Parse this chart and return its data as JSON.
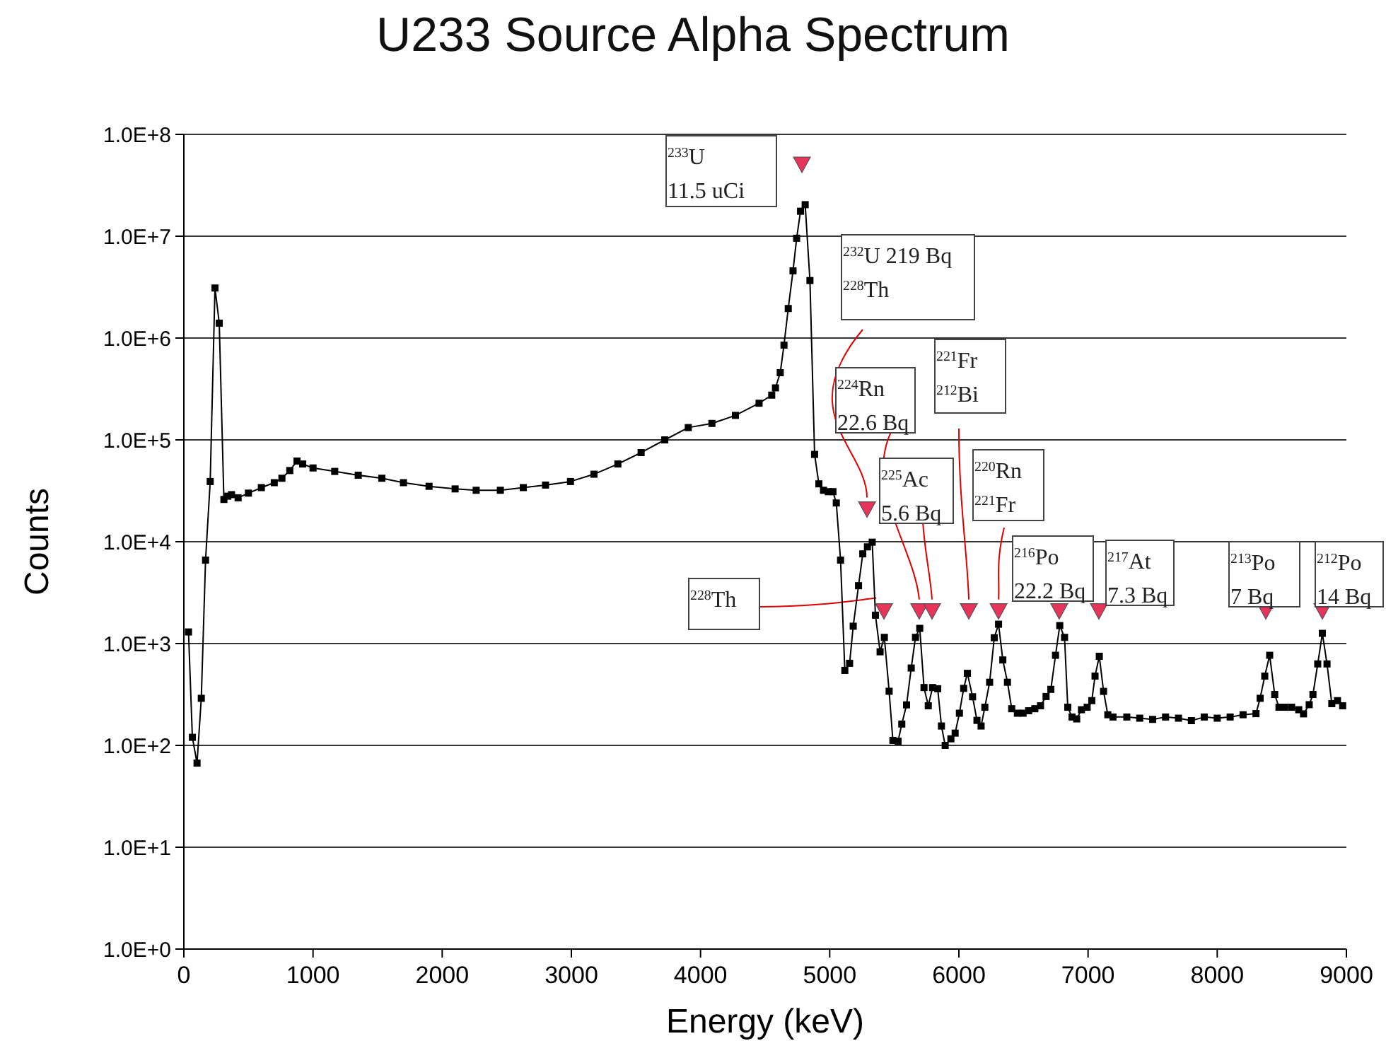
{
  "chart_data": {
    "type": "line",
    "title": "U233 Source Alpha Spectrum",
    "xlabel": "Energy (keV)",
    "ylabel": "Counts",
    "log": "y",
    "grid": "y",
    "xlim": [
      0,
      9000
    ],
    "xticks": [
      0,
      1000,
      2000,
      3000,
      4000,
      5000,
      6000,
      7000,
      8000,
      9000
    ],
    "ylim": [
      1,
      100000000
    ],
    "yticks": [
      {
        "value": 1,
        "label": "1.0E+0"
      },
      {
        "value": 10,
        "label": "1.0E+1"
      },
      {
        "value": 100,
        "label": "1.0E+2"
      },
      {
        "value": 1000,
        "label": "1.0E+3"
      },
      {
        "value": 10000,
        "label": "1.0E+4"
      },
      {
        "value": 100000,
        "label": "1.0E+5"
      },
      {
        "value": 1000000,
        "label": "1.0E+6"
      },
      {
        "value": 10000000,
        "label": "1.0E+7"
      },
      {
        "value": 100000000,
        "label": "1.0E+8"
      }
    ],
    "series": [
      {
        "type": "line",
        "color": "#000000",
        "marker": "square",
        "line_style": "solid",
        "x": [
          36,
          66,
          102,
          135,
          168,
          204,
          241,
          274,
          310,
          340,
          369,
          420,
          500,
          600,
          700,
          759,
          820,
          876,
          920,
          1000,
          1168,
          1350,
          1533,
          1700,
          1898,
          2100,
          2263,
          2450,
          2628,
          2800,
          2993,
          3175,
          3360,
          3540,
          3723,
          3905,
          4088,
          4270,
          4453,
          4551,
          4580,
          4617,
          4646,
          4679,
          4716,
          4744,
          4774,
          4810,
          4847,
          4883,
          4916,
          4952,
          4989,
          5025,
          5051,
          5084,
          5117,
          5154,
          5182,
          5223,
          5256,
          5292,
          5329,
          5354,
          5390,
          5423,
          5460,
          5489,
          5529,
          5558,
          5595,
          5631,
          5664,
          5697,
          5730,
          5763,
          5796,
          5836,
          5865,
          5894,
          5938,
          5971,
          6004,
          6037,
          6066,
          6106,
          6140,
          6172,
          6201,
          6238,
          6274,
          6307,
          6340,
          6376,
          6409,
          6453,
          6497,
          6540,
          6588,
          6632,
          6675,
          6712,
          6748,
          6781,
          6818,
          6843,
          6876,
          6912,
          6949,
          6993,
          7029,
          7054,
          7087,
          7120,
          7153,
          7193,
          7300,
          7400,
          7500,
          7600,
          7700,
          7800,
          7900,
          8000,
          8100,
          8200,
          8300,
          8332,
          8368,
          8406,
          8445,
          8478,
          8522,
          8576,
          8631,
          8668,
          8712,
          8741,
          8778,
          8814,
          8850,
          8887,
          8931,
          8971
        ],
        "values": [
          1300,
          120,
          67,
          290,
          6600,
          39000,
          3100000,
          1400000,
          26000,
          28000,
          29000,
          27000,
          30000,
          34000,
          38000,
          42000,
          50000,
          62000,
          58000,
          53000,
          49000,
          45000,
          42000,
          38000,
          35000,
          33000,
          32000,
          32000,
          34000,
          36000,
          39000,
          46000,
          58000,
          75000,
          100000,
          132000,
          145000,
          174000,
          229000,
          275000,
          324000,
          457000,
          851000,
          1950000,
          4570000,
          9550000,
          17600000,
          20400000,
          3670000,
          72000,
          37000,
          32000,
          31000,
          31000,
          24000,
          6600,
          545,
          640,
          1480,
          3700,
          7600,
          8900,
          9900,
          1900,
          830,
          1150,
          340,
          112,
          110,
          162,
          250,
          575,
          1150,
          1410,
          370,
          245,
          370,
          360,
          155,
          100,
          116,
          132,
          207,
          363,
          510,
          300,
          176,
          155,
          237,
          417,
          1140,
          1550,
          690,
          417,
          229,
          207,
          207,
          219,
          229,
          245,
          302,
          355,
          767,
          1500,
          1150,
          237,
          190,
          182,
          224,
          237,
          275,
          479,
          750,
          339,
          200,
          190,
          190,
          185,
          180,
          190,
          185,
          175,
          190,
          185,
          190,
          200,
          205,
          290,
          479,
          767,
          316,
          237,
          237,
          237,
          224,
          204,
          251,
          316,
          631,
          1260,
          631,
          257,
          275,
          245
        ]
      },
      {
        "type": "scatter",
        "color": "#e8335a",
        "marker": "triangle",
        "x": [
          4785,
          5289,
          5420,
          5693,
          5792,
          6077,
          6307,
          6777,
          7084,
          8376,
          8814
        ],
        "values": [
          51000000,
          21000,
          2100,
          2100,
          2100,
          2100,
          2100,
          2100,
          2100,
          2100,
          2100
        ]
      }
    ],
    "annotations": [
      "$^{233}$U\n11.5 uCi",
      {
        "text": "$^{232}$U 219 Bq\n$^{228}$Th",
        "x": 5289,
        "y": 21000
      },
      {
        "text": "$^{224}$Rn\n22.6 Bq",
        "x": 5693,
        "y": 2100
      },
      {
        "text": "$^{221}$Fr\n$^{212}$Bi",
        "x": 6077,
        "y": 2100
      },
      {
        "text": "$^{225}$Ac\n5.6 Bq",
        "x": 5792,
        "y": 2100
      },
      {
        "text": "$^{220}$Rn\n$^{221}$Fr",
        "x": 6307,
        "y": 2100
      },
      {
        "text": "$^{228}$Th",
        "x": 5360,
        "y": 2800
      },
      "$^{216}$Po\n22.2 Bq",
      "$^{217}$At\n7.3 Bq",
      "$^{213}$Po\n7 Bq",
      "$^{212}$Po\n14 Bq"
    ]
  }
}
